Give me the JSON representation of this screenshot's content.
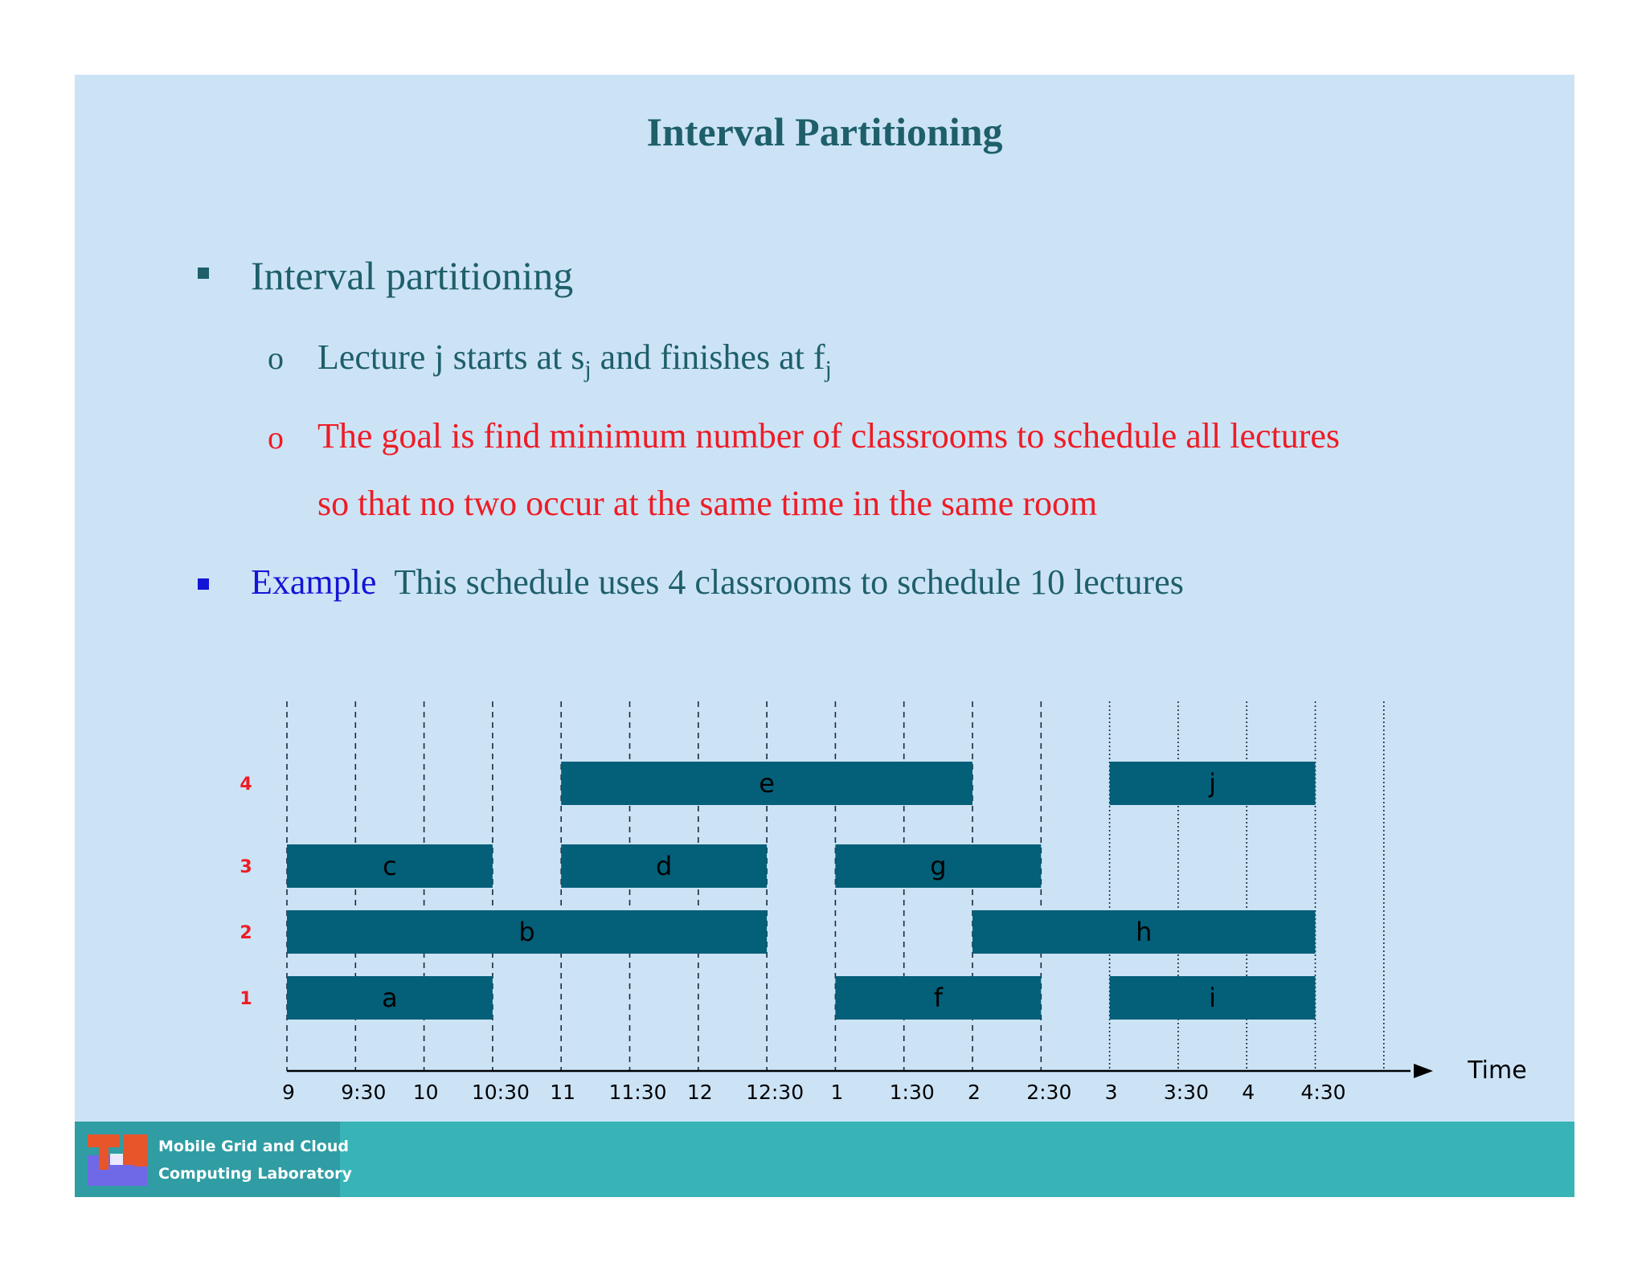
{
  "slide": {
    "title": "Interval Partitioning",
    "bullet1": "Interval partitioning",
    "sub1_prefix": "Lecture j starts at s",
    "sub1_sub1": "j",
    "sub1_mid": " and finishes at f",
    "sub1_sub2": "j",
    "sub2_line1": "The goal is find minimum number of classrooms to schedule all lectures",
    "sub2_line2": "so that no two occur at the same time in the same room",
    "example_label": "Example",
    "example_text": "This schedule uses 4 classrooms to schedule 10 lectures"
  },
  "diagram": {
    "axis_label": "Time",
    "time_labels": [
      "9",
      "9:30",
      "10",
      "10:30",
      "11",
      "11:30",
      "12",
      "12:30",
      "1",
      "1:30",
      "2",
      "2:30",
      "3",
      "3:30",
      "4",
      "4:30"
    ],
    "rooms": [
      "1",
      "2",
      "3",
      "4"
    ],
    "lectures": [
      {
        "name": "a",
        "room": 1,
        "start": 0,
        "end": 3
      },
      {
        "name": "b",
        "room": 2,
        "start": 0,
        "end": 7
      },
      {
        "name": "c",
        "room": 3,
        "start": 0,
        "end": 3
      },
      {
        "name": "d",
        "room": 3,
        "start": 4,
        "end": 7
      },
      {
        "name": "e",
        "room": 4,
        "start": 4,
        "end": 10
      },
      {
        "name": "f",
        "room": 1,
        "start": 8,
        "end": 11
      },
      {
        "name": "g",
        "room": 3,
        "start": 8,
        "end": 11
      },
      {
        "name": "h",
        "room": 2,
        "start": 10,
        "end": 15
      },
      {
        "name": "i",
        "room": 1,
        "start": 12,
        "end": 15
      },
      {
        "name": "j",
        "room": 4,
        "start": 12,
        "end": 15
      }
    ],
    "bar_color": "#045f78",
    "room_label_color": "#ee1c25"
  },
  "footer": {
    "logo_line1": "Mobile Grid and Cloud",
    "logo_line2": "Computing Laboratory"
  }
}
